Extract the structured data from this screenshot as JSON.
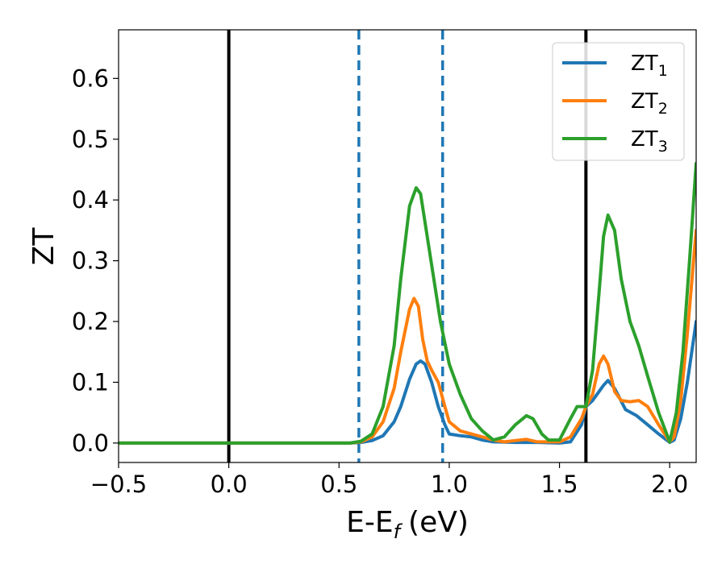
{
  "chart_data": {
    "type": "line",
    "xlabel": "E-E",
    "xlabel_sub": "f",
    "xlabel_unit": "(eV)",
    "ylabel": "ZT",
    "xlim": [
      -0.5,
      2.12
    ],
    "ylim": [
      -0.032,
      0.68
    ],
    "x_ticks": [
      -0.5,
      0.0,
      0.5,
      1.0,
      1.5,
      2.0
    ],
    "x_tick_labels": [
      "−0.5",
      "0.0",
      "0.5",
      "1.0",
      "1.5",
      "2.0"
    ],
    "y_ticks": [
      0.0,
      0.1,
      0.2,
      0.3,
      0.4,
      0.5,
      0.6
    ],
    "y_tick_labels": [
      "0.0",
      "0.1",
      "0.2",
      "0.3",
      "0.4",
      "0.5",
      "0.6"
    ],
    "grid": false,
    "legend_position": "top-right",
    "vertical_lines": [
      {
        "x": 0.0,
        "style": "solid",
        "color": "#000000"
      },
      {
        "x": 1.62,
        "style": "solid",
        "color": "#000000"
      },
      {
        "x": 0.59,
        "style": "dashed",
        "color": "#1f77b4"
      },
      {
        "x": 0.97,
        "style": "dashed",
        "color": "#1f77b4"
      }
    ],
    "series": [
      {
        "name": "ZT",
        "name_sub": "1",
        "color": "#1f77b4",
        "points": [
          [
            -0.5,
            0
          ],
          [
            0.0,
            0
          ],
          [
            0.55,
            0
          ],
          [
            0.6,
            0.001
          ],
          [
            0.65,
            0.004
          ],
          [
            0.7,
            0.012
          ],
          [
            0.75,
            0.035
          ],
          [
            0.78,
            0.06
          ],
          [
            0.82,
            0.105
          ],
          [
            0.85,
            0.13
          ],
          [
            0.87,
            0.135
          ],
          [
            0.89,
            0.13
          ],
          [
            0.92,
            0.1
          ],
          [
            0.95,
            0.06
          ],
          [
            0.98,
            0.03
          ],
          [
            1.0,
            0.015
          ],
          [
            1.05,
            0.012
          ],
          [
            1.1,
            0.01
          ],
          [
            1.15,
            0.005
          ],
          [
            1.2,
            0.002
          ],
          [
            1.3,
            0.001
          ],
          [
            1.4,
            0.001
          ],
          [
            1.5,
            0.0
          ],
          [
            1.55,
            0.002
          ],
          [
            1.6,
            0.03
          ],
          [
            1.62,
            0.06
          ],
          [
            1.65,
            0.07
          ],
          [
            1.7,
            0.095
          ],
          [
            1.72,
            0.103
          ],
          [
            1.75,
            0.09
          ],
          [
            1.8,
            0.055
          ],
          [
            1.85,
            0.045
          ],
          [
            1.9,
            0.03
          ],
          [
            1.95,
            0.015
          ],
          [
            2.0,
            0.001
          ],
          [
            2.02,
            0.005
          ],
          [
            2.05,
            0.04
          ],
          [
            2.08,
            0.1
          ],
          [
            2.12,
            0.2
          ]
        ]
      },
      {
        "name": "ZT",
        "name_sub": "2",
        "color": "#ff7f0e",
        "points": [
          [
            -0.5,
            0
          ],
          [
            0.0,
            0
          ],
          [
            0.55,
            0
          ],
          [
            0.6,
            0.002
          ],
          [
            0.65,
            0.01
          ],
          [
            0.7,
            0.035
          ],
          [
            0.75,
            0.09
          ],
          [
            0.78,
            0.15
          ],
          [
            0.82,
            0.22
          ],
          [
            0.84,
            0.238
          ],
          [
            0.86,
            0.225
          ],
          [
            0.88,
            0.17
          ],
          [
            0.9,
            0.135
          ],
          [
            0.92,
            0.12
          ],
          [
            0.95,
            0.1
          ],
          [
            0.98,
            0.06
          ],
          [
            1.0,
            0.035
          ],
          [
            1.05,
            0.02
          ],
          [
            1.1,
            0.015
          ],
          [
            1.15,
            0.01
          ],
          [
            1.2,
            0.005
          ],
          [
            1.25,
            0.002
          ],
          [
            1.3,
            0.004
          ],
          [
            1.35,
            0.006
          ],
          [
            1.4,
            0.002
          ],
          [
            1.5,
            0.002
          ],
          [
            1.55,
            0.01
          ],
          [
            1.6,
            0.04
          ],
          [
            1.62,
            0.06
          ],
          [
            1.65,
            0.08
          ],
          [
            1.68,
            0.13
          ],
          [
            1.7,
            0.143
          ],
          [
            1.72,
            0.13
          ],
          [
            1.75,
            0.085
          ],
          [
            1.78,
            0.07
          ],
          [
            1.82,
            0.068
          ],
          [
            1.86,
            0.07
          ],
          [
            1.9,
            0.06
          ],
          [
            1.95,
            0.03
          ],
          [
            2.0,
            0.002
          ],
          [
            2.02,
            0.01
          ],
          [
            2.05,
            0.07
          ],
          [
            2.08,
            0.18
          ],
          [
            2.12,
            0.35
          ]
        ]
      },
      {
        "name": "ZT",
        "name_sub": "3",
        "color": "#2ca02c",
        "points": [
          [
            -0.5,
            0
          ],
          [
            0.0,
            0
          ],
          [
            0.55,
            0
          ],
          [
            0.6,
            0.003
          ],
          [
            0.65,
            0.015
          ],
          [
            0.7,
            0.06
          ],
          [
            0.75,
            0.16
          ],
          [
            0.78,
            0.27
          ],
          [
            0.82,
            0.39
          ],
          [
            0.85,
            0.42
          ],
          [
            0.87,
            0.41
          ],
          [
            0.9,
            0.34
          ],
          [
            0.93,
            0.27
          ],
          [
            0.96,
            0.2
          ],
          [
            1.0,
            0.13
          ],
          [
            1.05,
            0.08
          ],
          [
            1.1,
            0.04
          ],
          [
            1.15,
            0.02
          ],
          [
            1.2,
            0.005
          ],
          [
            1.25,
            0.01
          ],
          [
            1.3,
            0.03
          ],
          [
            1.35,
            0.045
          ],
          [
            1.38,
            0.04
          ],
          [
            1.42,
            0.015
          ],
          [
            1.45,
            0.005
          ],
          [
            1.5,
            0.005
          ],
          [
            1.55,
            0.04
          ],
          [
            1.58,
            0.06
          ],
          [
            1.62,
            0.06
          ],
          [
            1.65,
            0.12
          ],
          [
            1.68,
            0.25
          ],
          [
            1.7,
            0.34
          ],
          [
            1.72,
            0.375
          ],
          [
            1.75,
            0.35
          ],
          [
            1.78,
            0.27
          ],
          [
            1.82,
            0.2
          ],
          [
            1.86,
            0.16
          ],
          [
            1.9,
            0.11
          ],
          [
            1.95,
            0.05
          ],
          [
            2.0,
            0.002
          ],
          [
            2.03,
            0.05
          ],
          [
            2.06,
            0.15
          ],
          [
            2.09,
            0.3
          ],
          [
            2.12,
            0.46
          ]
        ]
      }
    ]
  }
}
